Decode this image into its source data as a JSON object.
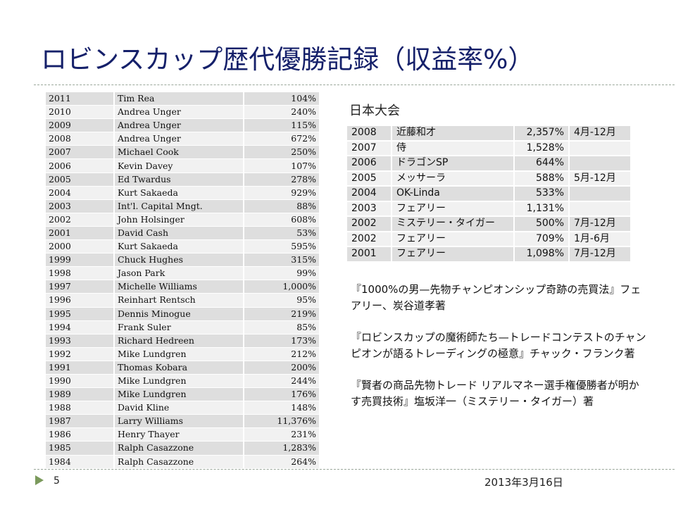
{
  "slide": {
    "title": "ロビンスカップ歴代優勝記録（収益率%）",
    "page_number": "5",
    "date": "2013年3月16日"
  },
  "robbins_table": [
    {
      "year": "2011",
      "name": "Tim Rea",
      "return": "104%"
    },
    {
      "year": "2010",
      "name": "Andrea Unger",
      "return": "240%"
    },
    {
      "year": "2009",
      "name": "Andrea Unger",
      "return": "115%"
    },
    {
      "year": "2008",
      "name": "Andrea Unger",
      "return": "672%"
    },
    {
      "year": "2007",
      "name": "Michael Cook",
      "return": "250%"
    },
    {
      "year": "2006",
      "name": "Kevin Davey",
      "return": "107%"
    },
    {
      "year": "2005",
      "name": "Ed Twardus",
      "return": "278%"
    },
    {
      "year": "2004",
      "name": "Kurt Sakaeda",
      "return": "929%"
    },
    {
      "year": "2003",
      "name": "Int'l. Capital Mngt.",
      "return": "88%"
    },
    {
      "year": "2002",
      "name": "John Holsinger",
      "return": "608%"
    },
    {
      "year": "2001",
      "name": "David Cash",
      "return": "53%"
    },
    {
      "year": "2000",
      "name": "Kurt Sakaeda",
      "return": "595%"
    },
    {
      "year": "1999",
      "name": "Chuck Hughes",
      "return": "315%"
    },
    {
      "year": "1998",
      "name": "Jason Park",
      "return": "99%"
    },
    {
      "year": "1997",
      "name": "Michelle Williams",
      "return": "1,000%"
    },
    {
      "year": "1996",
      "name": "Reinhart Rentsch",
      "return": "95%"
    },
    {
      "year": "1995",
      "name": "Dennis Minogue",
      "return": "219%"
    },
    {
      "year": "1994",
      "name": "Frank Suler",
      "return": "85%"
    },
    {
      "year": "1993",
      "name": "Richard Hedreen",
      "return": "173%"
    },
    {
      "year": "1992",
      "name": "Mike Lundgren",
      "return": "212%"
    },
    {
      "year": "1991",
      "name": "Thomas Kobara",
      "return": "200%"
    },
    {
      "year": "1990",
      "name": "Mike Lundgren",
      "return": "244%"
    },
    {
      "year": "1989",
      "name": "Mike Lundgren",
      "return": "176%"
    },
    {
      "year": "1988",
      "name": "David Kline",
      "return": "148%"
    },
    {
      "year": "1987",
      "name": "Larry Williams",
      "return": "11,376%"
    },
    {
      "year": "1986",
      "name": "Henry Thayer",
      "return": "231%"
    },
    {
      "year": "1985",
      "name": "Ralph Casazzone",
      "return": "1,283%"
    },
    {
      "year": "1984",
      "name": "Ralph Casazzone",
      "return": "264%"
    }
  ],
  "japan": {
    "heading": "日本大会",
    "rows": [
      {
        "year": "2008",
        "name": "近藤和才",
        "return": "2,357%",
        "period": "4月-12月"
      },
      {
        "year": "2007",
        "name": "侍",
        "return": "1,528%",
        "period": ""
      },
      {
        "year": "2006",
        "name": "ドラゴンSP",
        "return": "644%",
        "period": ""
      },
      {
        "year": "2005",
        "name": "メッサーラ",
        "return": "588%",
        "period": "5月-12月"
      },
      {
        "year": "2004",
        "name": "OK-Linda",
        "return": "533%",
        "period": ""
      },
      {
        "year": "2003",
        "name": "フェアリー",
        "return": "1,131%",
        "period": ""
      },
      {
        "year": "2002",
        "name": "ミステリー・タイガー",
        "return": "500%",
        "period": "7月-12月"
      },
      {
        "year": "2002",
        "name": "フェアリー",
        "return": "709%",
        "period": " 1月-6月"
      },
      {
        "year": "2001",
        "name": "フェアリー",
        "return": "1,098%",
        "period": "7月-12月"
      }
    ]
  },
  "books": [
    "『1000%の男—先物チャンピオンシップ奇跡の売買法』フェアリー、炭谷道孝著",
    "『ロビンスカップの魔術師たち—トレードコンテストのチャンピオンが語るトレーディングの極意』チャック・フランク著",
    "『賢者の商品先物トレード リアルマネー選手権優勝者が明かす売買技術』塩坂洋一（ミステリー・タイガー）著"
  ],
  "colors": {
    "title": "#15206a",
    "row_dark": "#dedede",
    "row_light": "#f1f1f1",
    "bullet": "#7b9a5c"
  }
}
